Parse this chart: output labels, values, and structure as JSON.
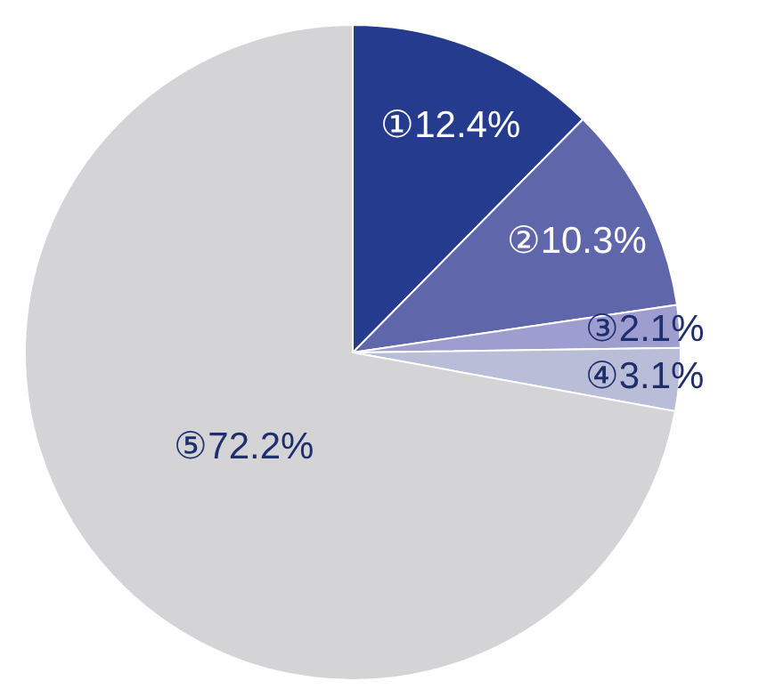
{
  "chart_data": {
    "type": "pie",
    "categories": [
      "①",
      "②",
      "③",
      "④",
      "⑤"
    ],
    "values": [
      12.4,
      10.3,
      2.1,
      3.1,
      72.2
    ],
    "colors": [
      "#243b8e",
      "#5f66aa",
      "#9e9dd0",
      "#babdd8",
      "#d4d4d7"
    ],
    "value_labels": [
      "12.4%",
      "10.3%",
      "2.1%",
      "3.1%",
      "72.2%"
    ]
  }
}
